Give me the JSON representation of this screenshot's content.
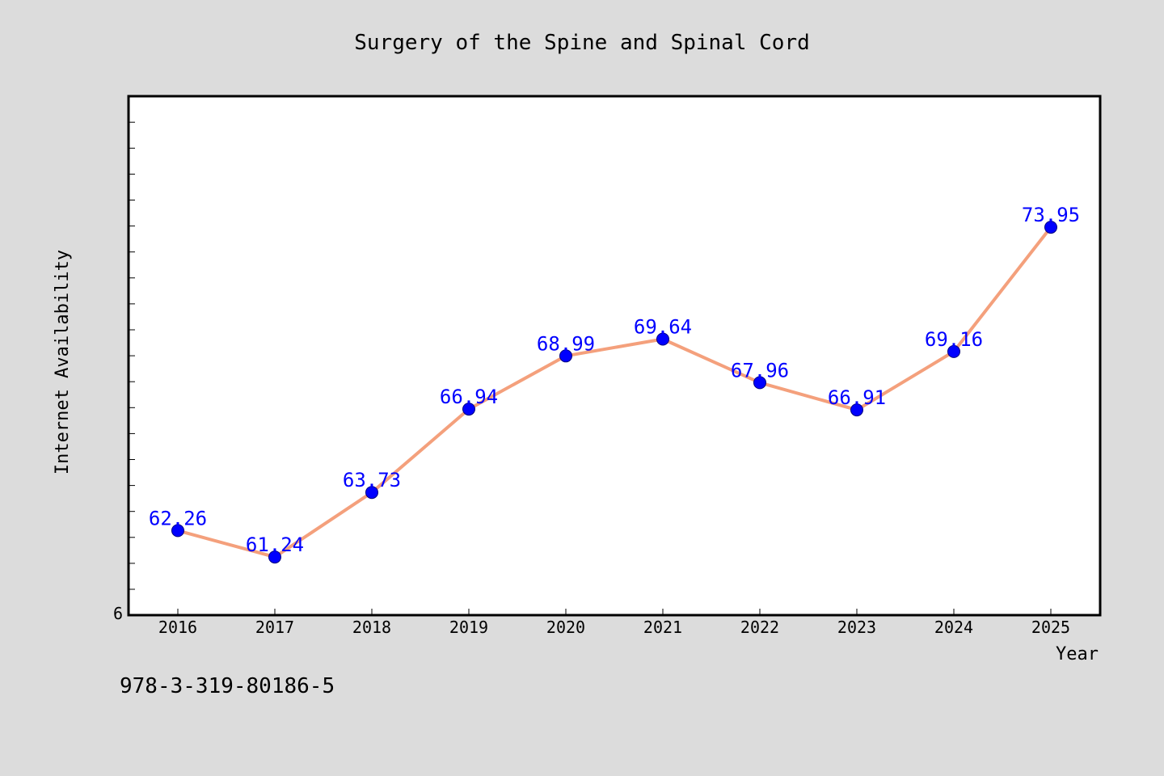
{
  "chart_data": {
    "type": "line",
    "title": "Surgery of the Spine and Spinal Cord",
    "xlabel": "Year",
    "ylabel": "Internet Availability",
    "categories": [
      "2016",
      "2017",
      "2018",
      "2019",
      "2020",
      "2021",
      "2022",
      "2023",
      "2024",
      "2025"
    ],
    "series": [
      {
        "values": [
          62.26,
          61.24,
          63.73,
          66.94,
          68.99,
          69.64,
          67.96,
          66.91,
          69.16,
          73.95
        ],
        "labels": [
          "62.26",
          "61.24",
          "63.73",
          "66.94",
          "68.99",
          "69.64",
          "67.96",
          "66.91",
          "69.16",
          "73.95"
        ]
      }
    ],
    "ylim": [
      59.0,
      79.0
    ],
    "ytick_label": "6",
    "grid": false,
    "line_color": "#f4a07c",
    "marker_color": "#0000ff",
    "label_color": "#0000ff"
  },
  "footer": {
    "isbn": "978-3-319-80186-5"
  }
}
